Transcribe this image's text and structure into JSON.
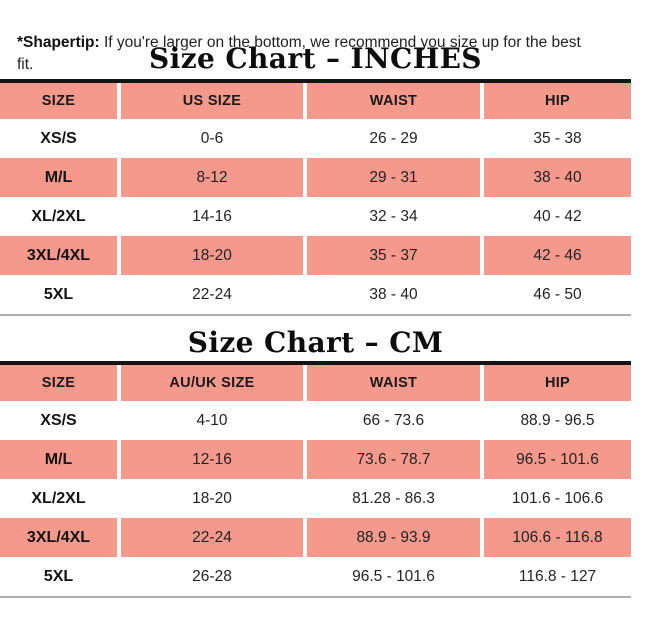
{
  "note": {
    "bold_prefix": "*Shapertip:",
    "text": "If you're larger on the bottom, we recommend you size up for the best fit."
  },
  "colors": {
    "salmon": "#F4998C",
    "header_top_border": "#141414",
    "table_bottom_border": "#AEAEAE"
  },
  "tables": [
    {
      "title": "Size Chart – INCHES",
      "columns": [
        "SIZE",
        "US SIZE",
        "WAIST",
        "HIP"
      ],
      "rows": [
        [
          "XS/S",
          "0-6",
          "26 - 29",
          "35 - 38"
        ],
        [
          "M/L",
          "8-12",
          "29 - 31",
          "38 - 40"
        ],
        [
          "XL/2XL",
          "14-16",
          "32 - 34",
          "40 - 42"
        ],
        [
          "3XL/4XL",
          "18-20",
          "35 - 37",
          "42 - 46"
        ],
        [
          "5XL",
          "22-24",
          "38 - 40",
          "46 - 50"
        ]
      ]
    },
    {
      "title": "Size Chart – CM",
      "columns": [
        "SIZE",
        "AU/UK SIZE",
        "WAIST",
        "HIP"
      ],
      "rows": [
        [
          "XS/S",
          "4-10",
          "66 - 73.6",
          "88.9 - 96.5"
        ],
        [
          "M/L",
          "12-16",
          "73.6 - 78.7",
          "96.5 - 101.6"
        ],
        [
          "XL/2XL",
          "18-20",
          "81.28 - 86.3",
          "101.6 - 106.6"
        ],
        [
          "3XL/4XL",
          "22-24",
          "88.9 - 93.9",
          "106.6 - 116.8"
        ],
        [
          "5XL",
          "26-28",
          "96.5 - 101.6",
          "116.8 - 127"
        ]
      ]
    }
  ]
}
